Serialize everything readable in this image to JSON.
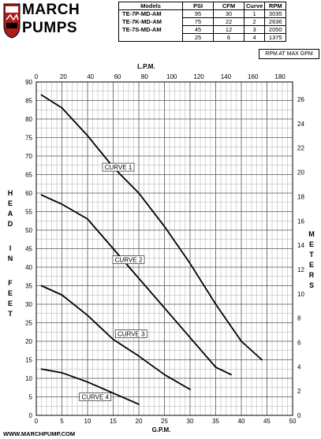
{
  "brand": {
    "line1": "MARCH",
    "line2": "PUMPS"
  },
  "table": {
    "headers": [
      "Models",
      "PSI",
      "CFM",
      "Curve",
      "RPM"
    ],
    "rows": [
      [
        "TE-7P-MD-AM",
        "95",
        "30",
        "1",
        "3035"
      ],
      [
        "TE-7K-MD-AM",
        "75",
        "22",
        "2",
        "2636"
      ],
      [
        "TE-7S-MD-AM",
        "45",
        "12",
        "3",
        "2050"
      ],
      [
        "",
        "25",
        "6",
        "4",
        "1375"
      ]
    ]
  },
  "rpm_note": "RPM AT MAX GPM",
  "footer": "WWW.MARCHPUMP.COM",
  "chart_data": {
    "type": "line",
    "xlabel": "G.P.M.",
    "x2label": "L.P.M.",
    "ylabel": "HEAD IN FEET",
    "y2label": "METERS",
    "xlim": [
      0,
      50
    ],
    "ylim": [
      0,
      90
    ],
    "x2lim": [
      0,
      189.27
    ],
    "y2lim": [
      0,
      27.43
    ],
    "xticks": [
      0,
      5,
      10,
      15,
      20,
      25,
      30,
      35,
      40,
      45,
      50
    ],
    "yticks": [
      0,
      5,
      10,
      15,
      20,
      25,
      30,
      35,
      40,
      45,
      50,
      55,
      60,
      65,
      70,
      75,
      80,
      85,
      90
    ],
    "x2ticks": [
      0,
      20,
      40,
      60,
      80,
      100,
      120,
      140,
      160,
      180
    ],
    "y2ticks": [
      0,
      2,
      4,
      6,
      8,
      10,
      12,
      14,
      16,
      18,
      20,
      22,
      24,
      26
    ],
    "grid": true,
    "series": [
      {
        "name": "CURVE 1",
        "x": [
          1,
          5,
          10,
          15,
          20,
          25,
          30,
          35,
          40,
          44
        ],
        "y": [
          86.5,
          83,
          75.5,
          67,
          60,
          51,
          41,
          30,
          20,
          15
        ]
      },
      {
        "name": "CURVE 2",
        "x": [
          1,
          5,
          10,
          15,
          20,
          25,
          30,
          35,
          38
        ],
        "y": [
          59.5,
          57,
          53,
          45,
          37,
          29,
          21,
          13,
          11
        ]
      },
      {
        "name": "CURVE 3",
        "x": [
          1,
          5,
          10,
          15,
          20,
          25,
          30
        ],
        "y": [
          35,
          32.5,
          27,
          20.5,
          16,
          11,
          7
        ]
      },
      {
        "name": "CURVE 4",
        "x": [
          1,
          5,
          10,
          15,
          20
        ],
        "y": [
          12.5,
          11.5,
          9,
          6,
          3
        ]
      }
    ],
    "labels": [
      {
        "series": "CURVE 1",
        "text": "CURVE 1",
        "x": 16,
        "y": 67
      },
      {
        "series": "CURVE 2",
        "text": "CURVE 2",
        "x": 18,
        "y": 42
      },
      {
        "series": "CURVE 3",
        "text": "CURVE 3",
        "x": 18.5,
        "y": 22
      },
      {
        "series": "CURVE 4",
        "text": "CURVE 4",
        "x": 11.5,
        "y": 5
      }
    ]
  }
}
